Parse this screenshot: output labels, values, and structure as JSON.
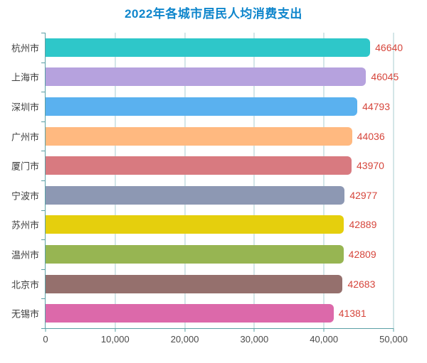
{
  "chart_data": {
    "type": "bar",
    "orientation": "horizontal",
    "title": "2022年各城市居民人均消费支出",
    "categories": [
      "杭州市",
      "上海市",
      "深圳市",
      "广州市",
      "厦门市",
      "宁波市",
      "苏州市",
      "温州市",
      "北京市",
      "无锡市"
    ],
    "values": [
      46640,
      46045,
      44793,
      44036,
      43970,
      42977,
      42889,
      42809,
      42683,
      41381
    ],
    "value_labels": [
      "46640",
      "46045",
      "44793",
      "44036",
      "43970",
      "42977",
      "42889",
      "42809",
      "42683",
      "41381"
    ],
    "xlabel": "",
    "ylabel": "",
    "xlim": [
      0,
      50000
    ],
    "x_ticks": [
      0,
      10000,
      20000,
      30000,
      40000,
      50000
    ],
    "x_tick_labels": [
      "0",
      "10,000",
      "20,000",
      "30,000",
      "40,000",
      "50,000"
    ],
    "grid": true,
    "legend": false,
    "bar_colors": [
      "#2ec7c9",
      "#b6a2de",
      "#5ab1ef",
      "#ffb980",
      "#d87a80",
      "#8d98b3",
      "#e5cf0d",
      "#97b552",
      "#95706d",
      "#dc69aa"
    ],
    "colors": {
      "title": "#0f86cc",
      "axis": "#5aa0a5",
      "grid": "#a8cdd2",
      "value_label": "#d6463c",
      "tick_label": "#4a4a4a",
      "category_label": "#3f3f3f",
      "background": "#ffffff"
    }
  }
}
